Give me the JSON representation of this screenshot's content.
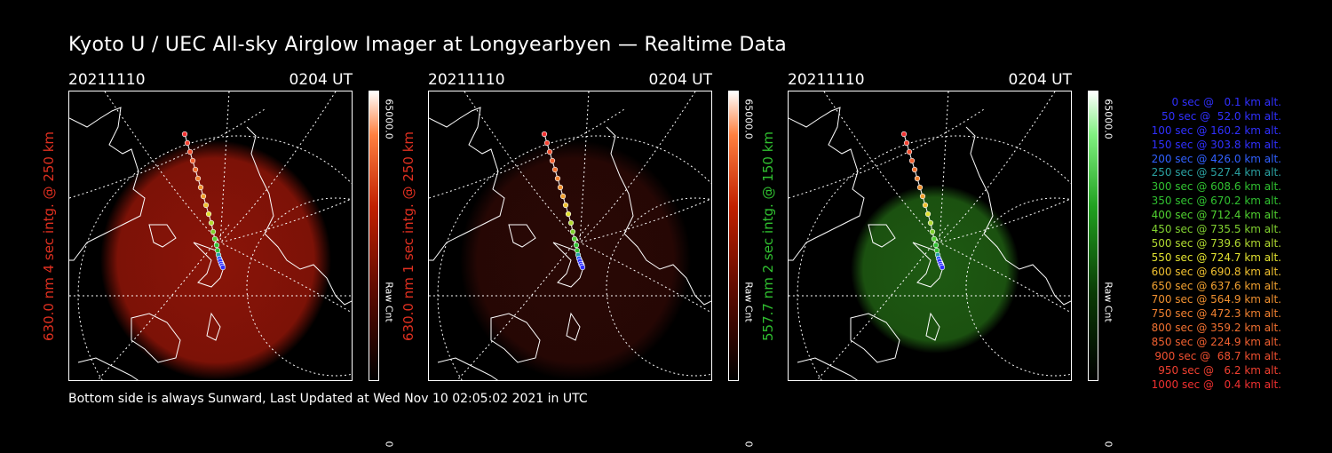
{
  "title": "Kyoto U / UEC All-sky Airglow Imager at Longyearbyen — Realtime Data",
  "footer": "Bottom side is always Sunward, Last Updated at Wed Nov 10 02:05:02 2021 in UTC",
  "panels": [
    {
      "date": "20211110",
      "time": "0204 UT",
      "ylabel": "630.0 nm 4 sec intg. @ 250 km",
      "ylabel_color": "#e03020",
      "cbar_max": "65000.0",
      "cbar_label": "Raw Cnt",
      "cbar_min": "0",
      "glow": "#8a1408"
    },
    {
      "date": "20211110",
      "time": "0204 UT",
      "ylabel": "630.0 nm 1 sec intg. @ 250 km",
      "ylabel_color": "#e03020",
      "cbar_max": "65000.0",
      "cbar_label": "Raw Cnt",
      "cbar_min": "0",
      "glow": "#2a0805"
    },
    {
      "date": "20211110",
      "time": "0204 UT",
      "ylabel": "557.7 nm 2 sec intg. @ 150 km",
      "ylabel_color": "#30c030",
      "cbar_max": "65000.0",
      "cbar_label": "Raw Cnt",
      "cbar_min": "0",
      "glow": "#1e5a12"
    }
  ],
  "legend": [
    {
      "text": "0 sec @   0.1 km alt.",
      "color": "#3030ff"
    },
    {
      "text": "50 sec @  52.0 km alt.",
      "color": "#3030ff"
    },
    {
      "text": "100 sec @ 160.2 km alt.",
      "color": "#3030ff"
    },
    {
      "text": "150 sec @ 303.8 km alt.",
      "color": "#3030ff"
    },
    {
      "text": "200 sec @ 426.0 km alt.",
      "color": "#3060ff"
    },
    {
      "text": "250 sec @ 527.4 km alt.",
      "color": "#2aa0a0"
    },
    {
      "text": "300 sec @ 608.6 km alt.",
      "color": "#30c030"
    },
    {
      "text": "350 sec @ 670.2 km alt.",
      "color": "#30c030"
    },
    {
      "text": "400 sec @ 712.4 km alt.",
      "color": "#50d030"
    },
    {
      "text": "450 sec @ 735.5 km alt.",
      "color": "#80d030"
    },
    {
      "text": "500 sec @ 739.6 km alt.",
      "color": "#b0d830"
    },
    {
      "text": "550 sec @ 724.7 km alt.",
      "color": "#e0e030"
    },
    {
      "text": "600 sec @ 690.8 km alt.",
      "color": "#f0c030"
    },
    {
      "text": "650 sec @ 637.6 km alt.",
      "color": "#f0a030"
    },
    {
      "text": "700 sec @ 564.9 km alt.",
      "color": "#f09030"
    },
    {
      "text": "750 sec @ 472.3 km alt.",
      "color": "#f08030"
    },
    {
      "text": "800 sec @ 359.2 km alt.",
      "color": "#f07030"
    },
    {
      "text": "850 sec @ 224.9 km alt.",
      "color": "#f06030"
    },
    {
      "text": "900 sec @  68.7 km alt.",
      "color": "#f05030"
    },
    {
      "text": "950 sec @   6.2 km alt.",
      "color": "#f04030"
    },
    {
      "text": "1000 sec @   0.4 km alt.",
      "color": "#f03030"
    }
  ]
}
